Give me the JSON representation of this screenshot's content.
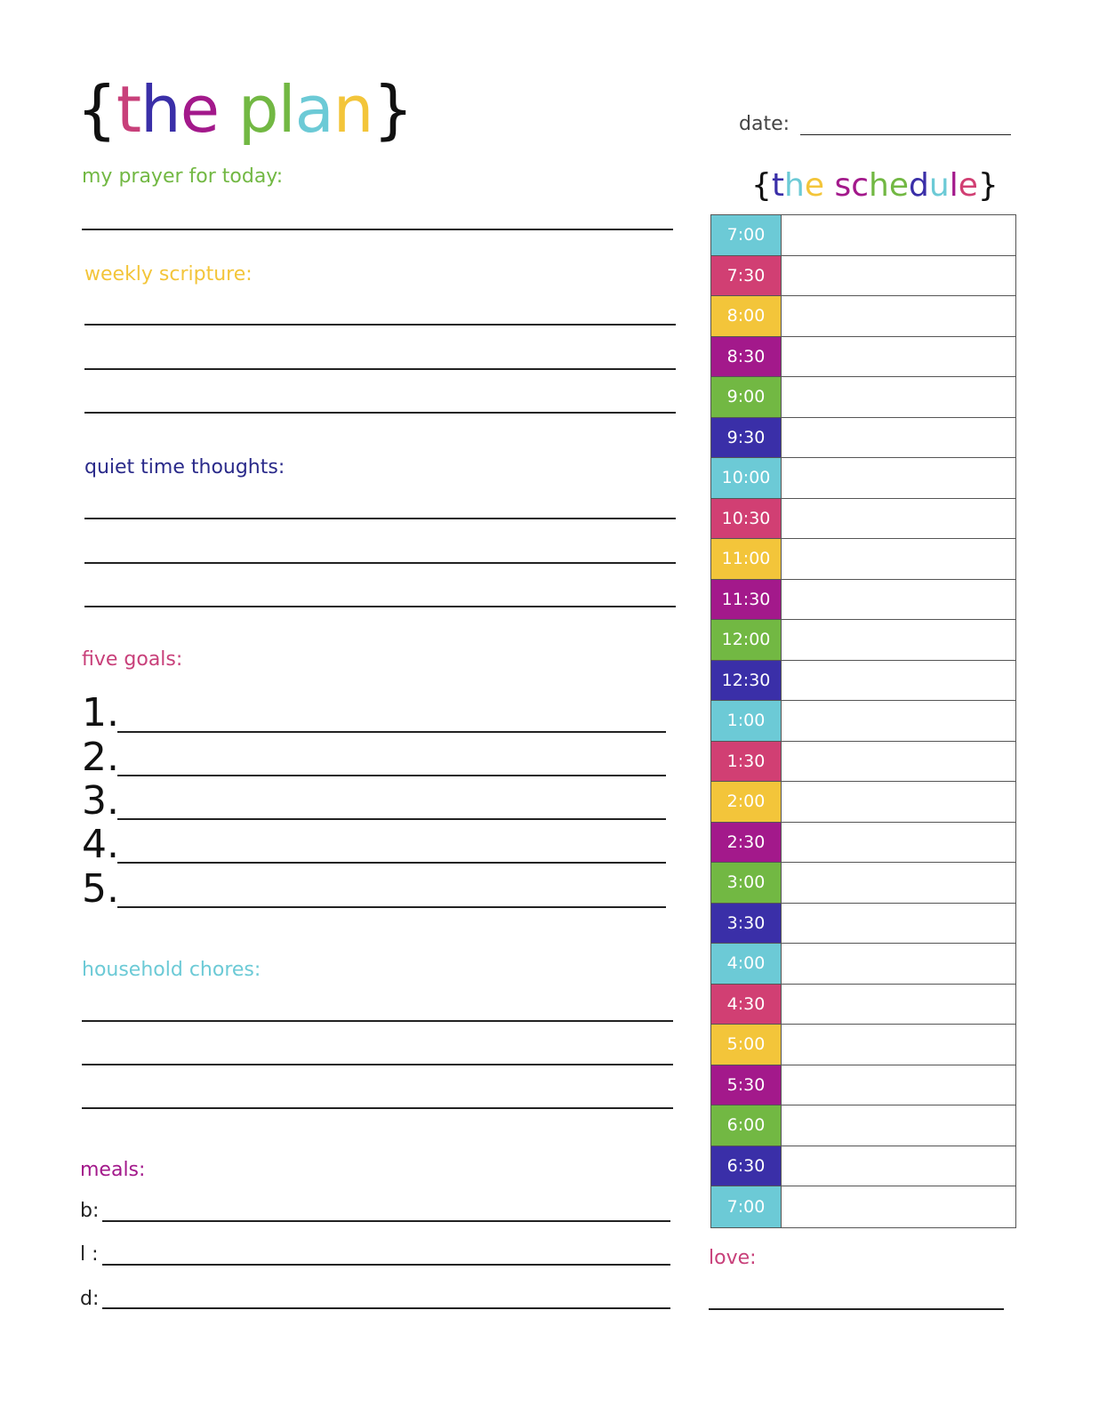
{
  "title": {
    "open": "{",
    "letters": [
      {
        "c": "t",
        "color": "#c8407a"
      },
      {
        "c": "h",
        "color": "#3a2fa8"
      },
      {
        "c": "e",
        "color": "#a3198b"
      },
      {
        "c": " ",
        "color": "#000"
      },
      {
        "c": "p",
        "color": "#72b843"
      },
      {
        "c": "l",
        "color": "#72b843"
      },
      {
        "c": "a",
        "color": "#6ccad6"
      },
      {
        "c": "n",
        "color": "#f3c53a"
      }
    ],
    "close": "}"
  },
  "date_label": "date:",
  "schedule_title": {
    "open": "{",
    "letters": [
      {
        "c": "t",
        "color": "#3a2fa8"
      },
      {
        "c": "h",
        "color": "#6ccad6"
      },
      {
        "c": "e",
        "color": "#f3c53a"
      },
      {
        "c": " ",
        "color": "#000"
      },
      {
        "c": "s",
        "color": "#a3198b"
      },
      {
        "c": "c",
        "color": "#a3198b"
      },
      {
        "c": "h",
        "color": "#72b843"
      },
      {
        "c": "e",
        "color": "#72b843"
      },
      {
        "c": "d",
        "color": "#3a2fa8"
      },
      {
        "c": "u",
        "color": "#6ccad6"
      },
      {
        "c": "l",
        "color": "#a3198b"
      },
      {
        "c": "e",
        "color": "#d13f73"
      }
    ],
    "close": "}"
  },
  "sections": {
    "prayer": {
      "label": "my prayer for today:",
      "color": "#72b843"
    },
    "scripture": {
      "label": "weekly scripture:",
      "color": "#f3c53a"
    },
    "quiet": {
      "label": "quiet time thoughts:",
      "color": "#2a2a8a"
    },
    "goals": {
      "label": "five goals:",
      "color": "#c8407a",
      "numbers": [
        "1.",
        "2.",
        "3.",
        "4.",
        "5."
      ]
    },
    "chores": {
      "label": "household chores:",
      "color": "#6ccad6"
    },
    "meals": {
      "label": "meals:",
      "color": "#a3198b",
      "items": [
        "b:",
        "l :",
        "d:"
      ]
    },
    "love": {
      "label": "love:",
      "color": "#c8407a"
    }
  },
  "schedule": [
    {
      "time": "7:00",
      "color": "#6ccad6"
    },
    {
      "time": "7:30",
      "color": "#d13f73"
    },
    {
      "time": "8:00",
      "color": "#f3c53a"
    },
    {
      "time": "8:30",
      "color": "#a3198b"
    },
    {
      "time": "9:00",
      "color": "#72b843"
    },
    {
      "time": "9:30",
      "color": "#3a2fa8"
    },
    {
      "time": "10:00",
      "color": "#6ccad6"
    },
    {
      "time": "10:30",
      "color": "#d13f73"
    },
    {
      "time": "11:00",
      "color": "#f3c53a"
    },
    {
      "time": "11:30",
      "color": "#a3198b"
    },
    {
      "time": "12:00",
      "color": "#72b843"
    },
    {
      "time": "12:30",
      "color": "#3a2fa8"
    },
    {
      "time": "1:00",
      "color": "#6ccad6"
    },
    {
      "time": "1:30",
      "color": "#d13f73"
    },
    {
      "time": "2:00",
      "color": "#f3c53a"
    },
    {
      "time": "2:30",
      "color": "#a3198b"
    },
    {
      "time": "3:00",
      "color": "#72b843"
    },
    {
      "time": "3:30",
      "color": "#3a2fa8"
    },
    {
      "time": "4:00",
      "color": "#6ccad6"
    },
    {
      "time": "4:30",
      "color": "#d13f73"
    },
    {
      "time": "5:00",
      "color": "#f3c53a"
    },
    {
      "time": "5:30",
      "color": "#a3198b"
    },
    {
      "time": "6:00",
      "color": "#72b843"
    },
    {
      "time": "6:30",
      "color": "#3a2fa8"
    },
    {
      "time": "7:00",
      "color": "#6ccad6"
    }
  ]
}
